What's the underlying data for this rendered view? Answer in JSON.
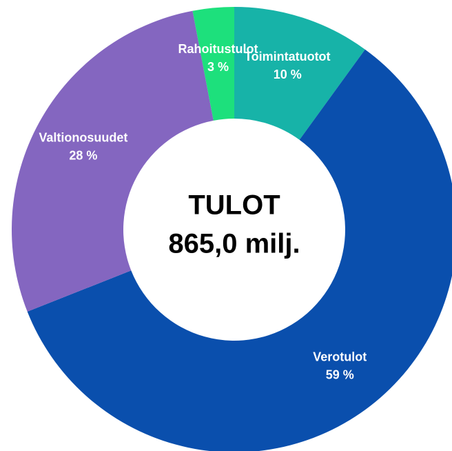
{
  "chart_data": {
    "type": "donut",
    "center_text": [
      "TULOT",
      "865,0 milj."
    ],
    "categories": [
      "Toimintatuotot",
      "Verotulot",
      "Valtionosuudet",
      "Rahoitustulot"
    ],
    "values": [
      10,
      59,
      28,
      3
    ],
    "value_labels": [
      "10 %",
      "59 %",
      "28 %",
      "3 %"
    ],
    "colors": [
      "#17b3a8",
      "#0a4fad",
      "#8466c0",
      "#1de07c"
    ]
  }
}
